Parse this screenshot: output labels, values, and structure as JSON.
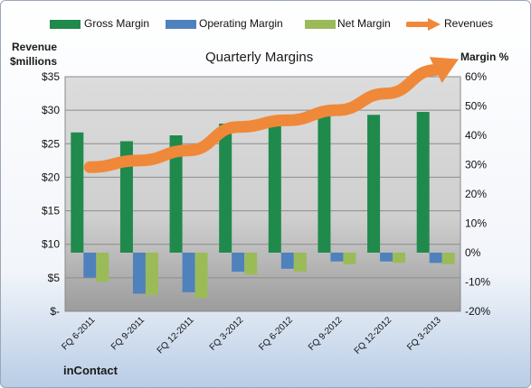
{
  "chart_data": {
    "type": "bar",
    "title": "Quarterly Margins",
    "source_label": "inContact",
    "ylabel_left": [
      "Revenue",
      "$millions"
    ],
    "ylabel_right": "Margin %",
    "left_axis": {
      "ylim": [
        0,
        35
      ],
      "ticks": [
        "$-",
        "$5",
        "$10",
        "$15",
        "$20",
        "$25",
        "$30",
        "$35"
      ]
    },
    "right_axis": {
      "ylim": [
        -20,
        60
      ],
      "ticks": [
        "-20%",
        "-10%",
        "0%",
        "10%",
        "20%",
        "30%",
        "40%",
        "50%",
        "60%"
      ]
    },
    "categories": [
      "FQ 6-2011",
      "FQ 9-2011",
      "FQ 12-2011",
      "FQ 3-2012",
      "FQ 6-2012",
      "FQ 9-2012",
      "FQ 12-2012",
      "FQ 3-2013"
    ],
    "series": [
      {
        "name": "Gross Margin",
        "axis": "right",
        "kind": "bar",
        "color": "#1f8a4c",
        "values": [
          41,
          38,
          40,
          44,
          45,
          46.5,
          47,
          48
        ]
      },
      {
        "name": "Operating Margin",
        "axis": "right",
        "kind": "bar",
        "color": "#4f81bd",
        "values": [
          -8.5,
          -14,
          -13.5,
          -6.5,
          -5.5,
          -3,
          -3,
          -3.5
        ]
      },
      {
        "name": "Net Margin",
        "axis": "right",
        "kind": "bar",
        "color": "#9bbb59",
        "values": [
          -10,
          -14.5,
          -15.5,
          -7.5,
          -6.5,
          -4,
          -3.5,
          -4
        ]
      },
      {
        "name": "Revenues",
        "axis": "left",
        "kind": "trend-arrow",
        "color": "#f0883a",
        "values": [
          21.5,
          22.5,
          24,
          27.5,
          28.5,
          30,
          32.5,
          36
        ]
      }
    ],
    "grid": true,
    "legend_position": "top"
  }
}
